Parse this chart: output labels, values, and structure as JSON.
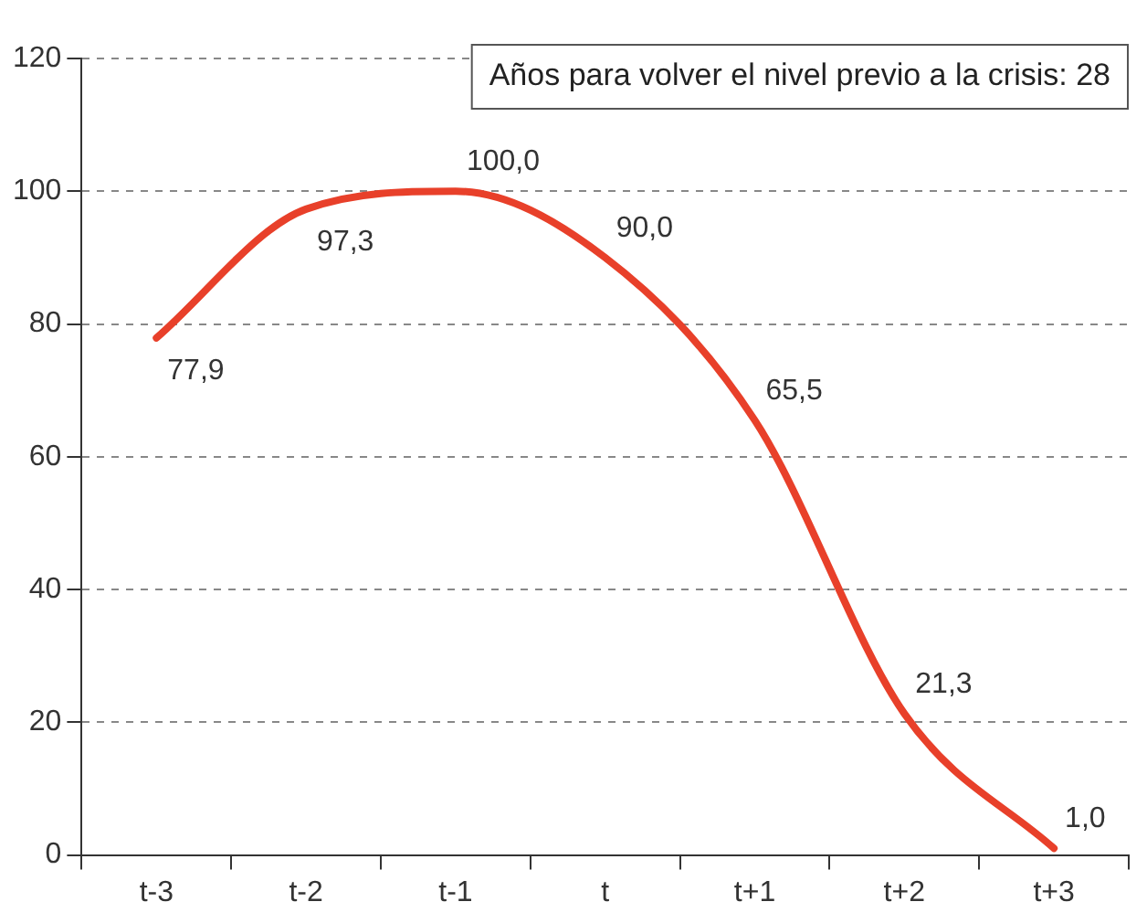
{
  "chart_data": {
    "type": "line",
    "categories": [
      "t-3",
      "t-2",
      "t-1",
      "t",
      "t+1",
      "t+2",
      "t+3"
    ],
    "series": [
      {
        "color": "#e8402a",
        "values": [
          77.9,
          97.3,
          100.0,
          90.0,
          65.5,
          21.3,
          1.0
        ],
        "value_labels": [
          "77,9",
          "97,3",
          "100,0",
          "90,0",
          "65,5",
          "21,3",
          "1,0"
        ]
      }
    ],
    "ylim": [
      0,
      120
    ],
    "yticks": [
      0,
      20,
      40,
      60,
      80,
      100,
      120
    ],
    "grid": "y",
    "legend": false,
    "marker": "none",
    "line_style": "solid",
    "annotations": [
      "Años para volver el nivel previo a la crisis: 28"
    ]
  }
}
